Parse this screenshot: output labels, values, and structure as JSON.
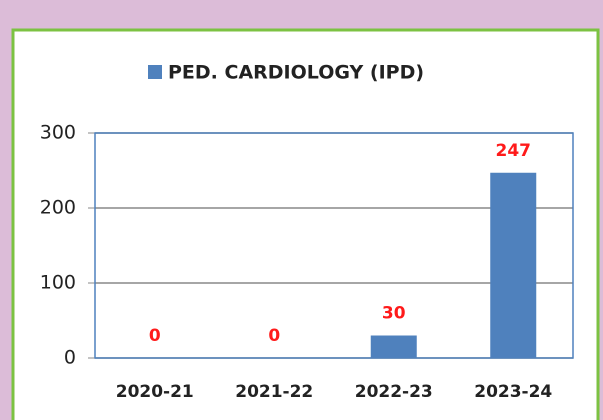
{
  "chart_data": {
    "type": "bar",
    "categories": [
      "2020-21",
      "2021-22",
      "2022-23",
      "2023-24"
    ],
    "series": [
      {
        "name": "PED. CARDIOLOGY (IPD)",
        "color": "#4f81bd",
        "values": [
          0,
          0,
          30,
          247
        ]
      }
    ],
    "ylim": [
      0,
      300
    ],
    "yticks": [
      0,
      100,
      200,
      300
    ],
    "grid": true,
    "legend": "top"
  }
}
